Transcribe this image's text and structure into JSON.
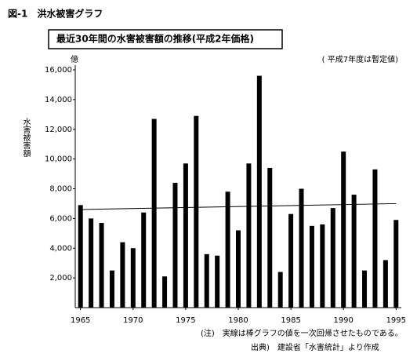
{
  "figure_label": "図-1　洪水被害グラフ",
  "chart_data": {
    "type": "bar",
    "title": "最近30年間の水害被害額の推移(平成2年価格)",
    "unit_label": "億",
    "note": "( 平成7年度は暫定値)",
    "y_label": "水害被害額",
    "x": [
      1965,
      1966,
      1967,
      1968,
      1969,
      1970,
      1971,
      1972,
      1973,
      1974,
      1975,
      1976,
      1977,
      1978,
      1979,
      1980,
      1981,
      1982,
      1983,
      1984,
      1985,
      1986,
      1987,
      1988,
      1989,
      1990,
      1991,
      1992,
      1993,
      1994,
      1995
    ],
    "values": [
      6900,
      6000,
      5700,
      2500,
      4400,
      4000,
      6400,
      12700,
      2100,
      8400,
      9700,
      12900,
      3600,
      3500,
      7800,
      5200,
      9700,
      15600,
      9400,
      2400,
      6300,
      8000,
      5500,
      5600,
      6700,
      10500,
      7600,
      2500,
      9300,
      3200,
      5900
    ],
    "color": "#000000",
    "trend_line": {
      "x": [
        1965,
        1995
      ],
      "values": [
        6600,
        7000
      ],
      "color": "#000000"
    },
    "xlim": [
      1964.5,
      1995.5
    ],
    "xticks": [
      1965,
      1970,
      1975,
      1980,
      1985,
      1990,
      1995
    ],
    "ylim": [
      0,
      16000
    ],
    "yticks": [
      {
        "value": 2000,
        "label": "2,000"
      },
      {
        "value": 4000,
        "label": "4,000"
      },
      {
        "value": 6000,
        "label": "6,000"
      },
      {
        "value": 8000,
        "label": "8,000"
      },
      {
        "value": 10000,
        "label": "10,000"
      },
      {
        "value": 12000,
        "label": "12,000"
      },
      {
        "value": 14000,
        "label": "14,000"
      },
      {
        "value": 16000,
        "label": "16,000"
      }
    ],
    "footnotes": [
      "(注)　実線は棒グラフの値を一次回帰させたものである。",
      "出典)　建設省「水害統計」より作成"
    ]
  }
}
